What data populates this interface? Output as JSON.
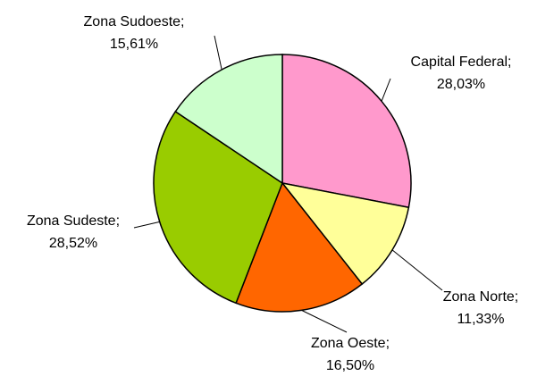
{
  "chart_data": {
    "type": "pie",
    "categories": [
      "Capital Federal;",
      "Zona Norte;",
      "Zona Oeste;",
      "Zona Sudeste;",
      "Zona Sudoeste;"
    ],
    "values": [
      28.03,
      11.33,
      16.5,
      28.52,
      15.61
    ],
    "value_labels": [
      "28,03%",
      "11,33%",
      "16,50%",
      "28,52%",
      "15,61%"
    ],
    "colors": [
      "#FF99CC",
      "#FFFF99",
      "#FF6600",
      "#99CC00",
      "#CCFFCC"
    ]
  }
}
